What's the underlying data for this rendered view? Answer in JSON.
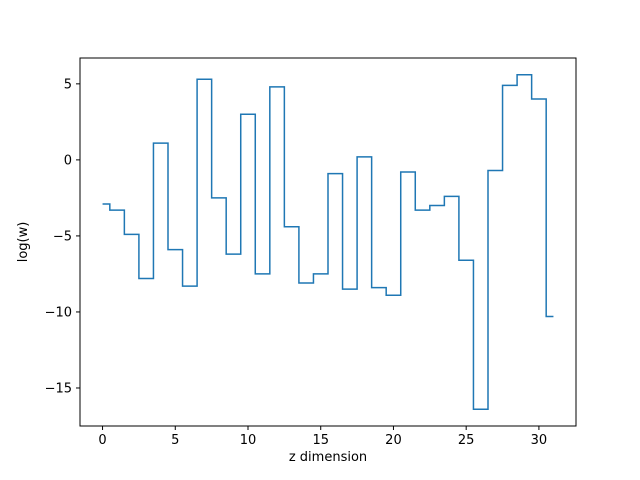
{
  "chart_data": {
    "type": "line",
    "style": "step-mid",
    "title": "",
    "xlabel": "z dimension",
    "ylabel": "log(w)",
    "x": [
      0,
      1,
      2,
      3,
      4,
      5,
      6,
      7,
      8,
      9,
      10,
      11,
      12,
      13,
      14,
      15,
      16,
      17,
      18,
      19,
      20,
      21,
      22,
      23,
      24,
      25,
      26,
      27,
      28,
      29,
      30,
      31
    ],
    "values": [
      -2.9,
      -3.3,
      -4.9,
      -7.8,
      1.1,
      -5.9,
      -8.3,
      5.3,
      -2.5,
      -6.2,
      3.0,
      -7.5,
      4.8,
      -4.4,
      -8.1,
      -7.5,
      -0.9,
      -8.5,
      0.2,
      -8.4,
      -8.9,
      -0.8,
      -3.3,
      -3.0,
      -2.4,
      -6.6,
      -16.4,
      -0.7,
      4.9,
      5.6,
      4.0,
      -10.3
    ],
    "xlim": [
      -1.55,
      32.55
    ],
    "ylim": [
      -17.5,
      6.7
    ],
    "xticks": [
      0,
      5,
      10,
      15,
      20,
      25,
      30
    ],
    "xtick_labels": [
      "0",
      "5",
      "10",
      "15",
      "20",
      "25",
      "30"
    ],
    "yticks": [
      -15,
      -10,
      -5,
      0,
      5
    ],
    "ytick_labels": [
      "−15",
      "−10",
      "−5",
      "0",
      "5"
    ],
    "line_color": "#1f77b4",
    "grid": false,
    "legend": null
  }
}
